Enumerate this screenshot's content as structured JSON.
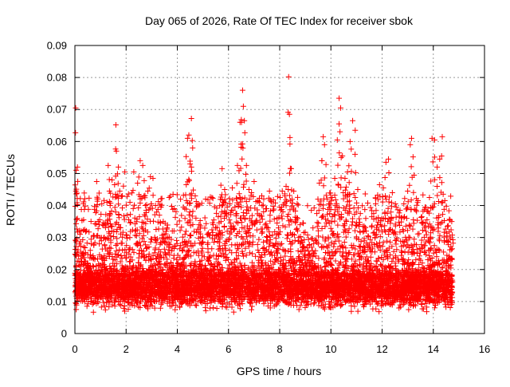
{
  "chart_data": {
    "type": "scatter",
    "title": "Day 065 of 2026, Rate Of TEC Index for receiver sbok",
    "xlabel": "GPS time / hours",
    "ylabel": "ROTI / TECUs",
    "xlim": [
      0,
      16
    ],
    "ylim": [
      0,
      0.09
    ],
    "x_ticks": [
      0,
      2,
      4,
      6,
      8,
      10,
      12,
      14,
      16
    ],
    "x_tick_labels": [
      "0",
      "2",
      "4",
      "6",
      "8",
      "10",
      "12",
      "14",
      "16"
    ],
    "y_ticks": [
      0,
      0.01,
      0.02,
      0.03,
      0.04,
      0.05,
      0.06,
      0.07,
      0.08,
      0.09
    ],
    "y_tick_labels": [
      "0",
      "0.01",
      "0.02",
      "0.03",
      "0.04",
      "0.05",
      "0.06",
      "0.07",
      "0.08",
      "0.09"
    ],
    "grid": true,
    "marker": "+",
    "series": [
      {
        "name": "ROTI",
        "color": "#ff0000",
        "x_range": [
          0,
          14.75
        ],
        "points": [
          [
            0.03,
            0.0705
          ],
          [
            0.05,
            0.051
          ],
          [
            0.04,
            0.0445
          ],
          [
            0.1,
            0.052
          ],
          [
            0.2,
            0.031
          ],
          [
            0.35,
            0.027
          ],
          [
            0.5,
            0.022
          ],
          [
            0.6,
            0.026
          ],
          [
            0.75,
            0.0305
          ],
          [
            0.85,
            0.0475
          ],
          [
            0.95,
            0.034
          ],
          [
            1.05,
            0.0405
          ],
          [
            1.15,
            0.03
          ],
          [
            1.25,
            0.041
          ],
          [
            1.3,
            0.0525
          ],
          [
            1.35,
            0.0445
          ],
          [
            1.45,
            0.048
          ],
          [
            1.55,
            0.0465
          ],
          [
            1.6,
            0.0652
          ],
          [
            1.62,
            0.057
          ],
          [
            1.7,
            0.052
          ],
          [
            1.75,
            0.0445
          ],
          [
            1.85,
            0.043
          ],
          [
            1.95,
            0.0505
          ],
          [
            2.05,
            0.037
          ],
          [
            2.15,
            0.041
          ],
          [
            2.3,
            0.0505
          ],
          [
            2.45,
            0.047
          ],
          [
            2.55,
            0.054
          ],
          [
            2.65,
            0.0525
          ],
          [
            2.75,
            0.04
          ],
          [
            2.85,
            0.0445
          ],
          [
            2.95,
            0.049
          ],
          [
            3.05,
            0.0485
          ],
          [
            3.15,
            0.04
          ],
          [
            3.3,
            0.037
          ],
          [
            3.45,
            0.035
          ],
          [
            3.6,
            0.033
          ],
          [
            3.75,
            0.022
          ],
          [
            3.85,
            0.019
          ],
          [
            3.95,
            0.0165
          ],
          [
            4.05,
            0.018
          ],
          [
            4.15,
            0.0215
          ],
          [
            4.3,
            0.031
          ],
          [
            4.35,
            0.0465
          ],
          [
            4.4,
            0.061
          ],
          [
            4.45,
            0.062
          ],
          [
            4.5,
            0.053
          ],
          [
            4.55,
            0.0672
          ],
          [
            4.6,
            0.058
          ],
          [
            4.7,
            0.043
          ],
          [
            4.85,
            0.034
          ],
          [
            5.0,
            0.0285
          ],
          [
            5.2,
            0.031
          ],
          [
            5.4,
            0.034
          ],
          [
            5.6,
            0.0365
          ],
          [
            5.75,
            0.0515
          ],
          [
            5.85,
            0.045
          ],
          [
            5.95,
            0.0395
          ],
          [
            6.05,
            0.0405
          ],
          [
            6.15,
            0.0455
          ],
          [
            6.25,
            0.0395
          ],
          [
            6.35,
            0.0525
          ],
          [
            6.45,
            0.066
          ],
          [
            6.5,
            0.0668
          ],
          [
            6.55,
            0.076
          ],
          [
            6.58,
            0.071
          ],
          [
            6.62,
            0.0665
          ],
          [
            6.7,
            0.0525
          ],
          [
            6.8,
            0.045
          ],
          [
            6.9,
            0.044
          ],
          [
            7.0,
            0.0475
          ],
          [
            7.15,
            0.0415
          ],
          [
            7.3,
            0.043
          ],
          [
            7.45,
            0.039
          ],
          [
            7.6,
            0.0445
          ],
          [
            7.75,
            0.0385
          ],
          [
            7.9,
            0.036
          ],
          [
            8.0,
            0.0395
          ],
          [
            8.1,
            0.0445
          ],
          [
            8.25,
            0.046
          ],
          [
            8.35,
            0.0802
          ],
          [
            8.38,
            0.0685
          ],
          [
            8.45,
            0.0515
          ],
          [
            8.55,
            0.0445
          ],
          [
            8.7,
            0.036
          ],
          [
            8.85,
            0.029
          ],
          [
            9.0,
            0.026
          ],
          [
            9.15,
            0.0275
          ],
          [
            9.3,
            0.033
          ],
          [
            9.45,
            0.0375
          ],
          [
            9.55,
            0.047
          ],
          [
            9.65,
            0.054
          ],
          [
            9.7,
            0.0615
          ],
          [
            9.75,
            0.059
          ],
          [
            9.85,
            0.042
          ],
          [
            9.95,
            0.0405
          ],
          [
            10.05,
            0.0425
          ],
          [
            10.15,
            0.0485
          ],
          [
            10.25,
            0.0605
          ],
          [
            10.32,
            0.0735
          ],
          [
            10.38,
            0.0705
          ],
          [
            10.45,
            0.0555
          ],
          [
            10.55,
            0.0485
          ],
          [
            10.65,
            0.0505
          ],
          [
            10.75,
            0.06
          ],
          [
            10.85,
            0.0665
          ],
          [
            10.95,
            0.0635
          ],
          [
            11.05,
            0.045
          ],
          [
            11.15,
            0.0375
          ],
          [
            11.3,
            0.0335
          ],
          [
            11.45,
            0.0305
          ],
          [
            11.6,
            0.0365
          ],
          [
            11.75,
            0.0405
          ],
          [
            11.9,
            0.0465
          ],
          [
            12.05,
            0.0455
          ],
          [
            12.15,
            0.0535
          ],
          [
            12.25,
            0.0545
          ],
          [
            12.4,
            0.044
          ],
          [
            12.55,
            0.0395
          ],
          [
            12.7,
            0.0385
          ],
          [
            12.85,
            0.0405
          ],
          [
            13.0,
            0.0445
          ],
          [
            13.1,
            0.059
          ],
          [
            13.15,
            0.061
          ],
          [
            13.25,
            0.0495
          ],
          [
            13.4,
            0.0415
          ],
          [
            13.55,
            0.0365
          ],
          [
            13.7,
            0.0395
          ],
          [
            13.85,
            0.0425
          ],
          [
            13.95,
            0.061
          ],
          [
            14.05,
            0.0605
          ],
          [
            14.15,
            0.052
          ],
          [
            14.25,
            0.0545
          ],
          [
            14.35,
            0.0615
          ],
          [
            14.45,
            0.0415
          ],
          [
            14.55,
            0.0335
          ],
          [
            14.65,
            0.0355
          ],
          [
            14.72,
            0.035
          ]
        ]
      }
    ]
  }
}
